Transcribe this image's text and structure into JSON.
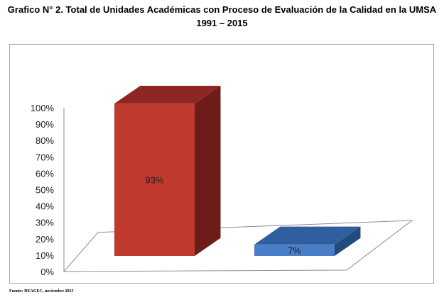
{
  "title_line1": "Grafico N° 2. Total de Unidades Académicas con Proceso de Evaluación de la Calidad en la UMSA",
  "title_line2": "1991 – 2015",
  "source_note": "Fuente: DEAGEC, noviembre 2015",
  "colors": {
    "bar_red_front": "#C0392F",
    "bar_red_top": "#8E2723",
    "bar_red_side": "#6E1C1A",
    "bar_blue_front": "#4A7EC8",
    "bar_blue_top": "#2F5F9E",
    "bar_blue_side": "#234A7E",
    "floor_stroke": "#8c8c8c",
    "axis_stroke": "#8c8c8c"
  },
  "chart_data": {
    "type": "bar",
    "categories": [
      "",
      ""
    ],
    "values": [
      93,
      7
    ],
    "data_labels": [
      "93%",
      "7%"
    ],
    "yticks": [
      "0%",
      "10%",
      "20%",
      "30%",
      "40%",
      "50%",
      "60%",
      "70%",
      "80%",
      "90%",
      "100%"
    ],
    "ylim": [
      0,
      100
    ],
    "grid": false,
    "legend": "none",
    "style": "3d"
  }
}
